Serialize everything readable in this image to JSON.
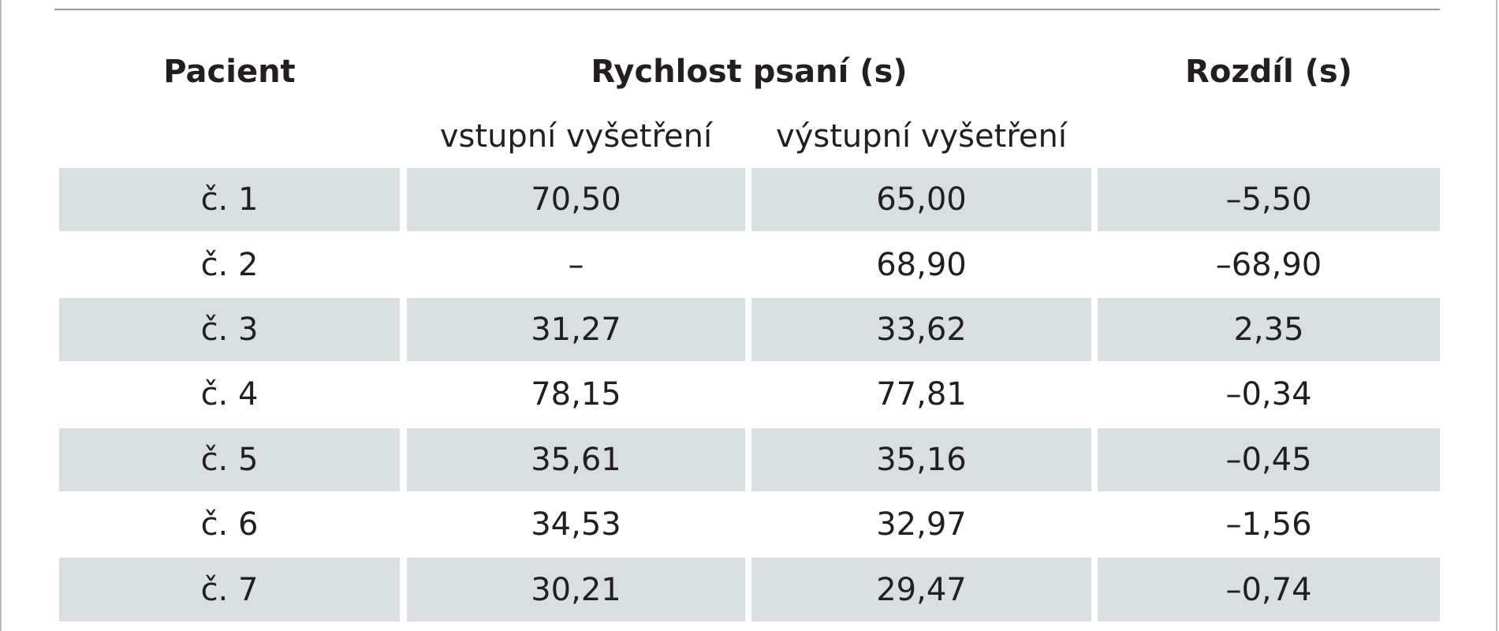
{
  "header": {
    "patient": "Pacient",
    "speed": "Rychlost psaní (s)",
    "difference": "Rozdíl (s)"
  },
  "subheader": [
    "vstupní vyšetření",
    "výstupní vyšetření"
  ],
  "table": {
    "rows": [
      [
        "č. 1",
        "70,50",
        "65,00",
        "–5,50"
      ],
      [
        "č. 2",
        "–",
        "68,90",
        "–68,90"
      ],
      [
        "č. 3",
        "31,27",
        "33,62",
        "2,35"
      ],
      [
        "č. 4",
        "78,15",
        "77,81",
        "–0,34"
      ],
      [
        "č. 5",
        "35,61",
        "35,16",
        "–0,45"
      ],
      [
        "č. 6",
        "34,53",
        "32,97",
        "–1,56"
      ],
      [
        "č. 7",
        "30,21",
        "29,47",
        "–0,74"
      ]
    ]
  }
}
